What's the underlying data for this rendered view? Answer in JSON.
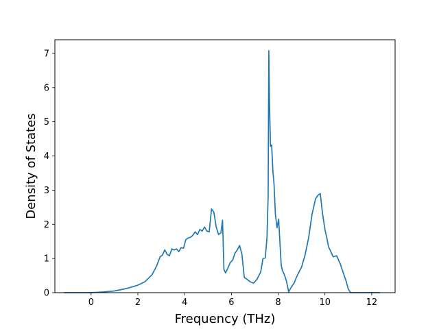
{
  "chart_data": {
    "type": "line",
    "title": "",
    "xlabel": "Frequency (THz)",
    "ylabel": "Density of States",
    "xlim": [
      -1.55,
      13.0
    ],
    "ylim": [
      0,
      7.4
    ],
    "xticks": [
      0,
      2,
      4,
      6,
      8,
      10,
      12
    ],
    "yticks": [
      0,
      1,
      2,
      3,
      4,
      5,
      6,
      7
    ],
    "grid": false,
    "legend": "none",
    "color": "#1f77b4",
    "series": [
      {
        "x": [
          -1.15,
          -0.6,
          0.0,
          0.5,
          1.0,
          1.5,
          2.0,
          2.3,
          2.6,
          2.8,
          2.95,
          3.05,
          3.15,
          3.25,
          3.35,
          3.45,
          3.55,
          3.65,
          3.75,
          3.85,
          3.95,
          4.05,
          4.15,
          4.25,
          4.35,
          4.45,
          4.55,
          4.65,
          4.75,
          4.85,
          4.95,
          5.05,
          5.15,
          5.25,
          5.35,
          5.45,
          5.55,
          5.62,
          5.68,
          5.75,
          5.85,
          5.95,
          6.05,
          6.15,
          6.25,
          6.35,
          6.45,
          6.55,
          6.65,
          6.8,
          6.95,
          7.1,
          7.25,
          7.35,
          7.45,
          7.52,
          7.57,
          7.6,
          7.63,
          7.67,
          7.72,
          7.77,
          7.82,
          7.88,
          7.95,
          8.02,
          8.08,
          8.13,
          8.18,
          8.25,
          8.35,
          8.45,
          8.55,
          8.62,
          8.68,
          8.75,
          8.85,
          9.0,
          9.15,
          9.3,
          9.45,
          9.6,
          9.7,
          9.8,
          9.9,
          10.0,
          10.08,
          10.15,
          10.25,
          10.35,
          10.5,
          10.65,
          10.8,
          10.9,
          11.0,
          11.1,
          11.2,
          11.28,
          11.35,
          12.0,
          12.35
        ],
        "y": [
          0.0,
          0.0,
          0.0,
          0.02,
          0.05,
          0.12,
          0.22,
          0.32,
          0.52,
          0.78,
          1.05,
          1.1,
          1.25,
          1.12,
          1.08,
          1.28,
          1.25,
          1.28,
          1.2,
          1.32,
          1.3,
          1.55,
          1.6,
          1.62,
          1.68,
          1.78,
          1.7,
          1.85,
          1.8,
          1.92,
          1.8,
          1.78,
          2.45,
          2.35,
          1.92,
          1.7,
          1.75,
          2.12,
          0.68,
          0.58,
          0.72,
          0.88,
          0.95,
          1.15,
          1.25,
          1.38,
          1.12,
          0.45,
          0.4,
          0.32,
          0.28,
          0.4,
          0.6,
          1.0,
          1.02,
          1.6,
          2.8,
          7.08,
          5.5,
          4.28,
          4.32,
          3.6,
          3.2,
          2.3,
          1.9,
          2.15,
          1.4,
          0.8,
          0.65,
          0.55,
          0.35,
          0.02,
          0.15,
          0.22,
          0.28,
          0.4,
          0.55,
          0.75,
          1.1,
          1.6,
          2.3,
          2.75,
          2.85,
          2.9,
          2.3,
          1.85,
          1.6,
          1.35,
          1.2,
          1.05,
          1.08,
          0.85,
          0.55,
          0.35,
          0.1,
          0.0,
          0.0,
          0.0,
          0.0,
          0.0,
          0.0
        ]
      }
    ]
  }
}
